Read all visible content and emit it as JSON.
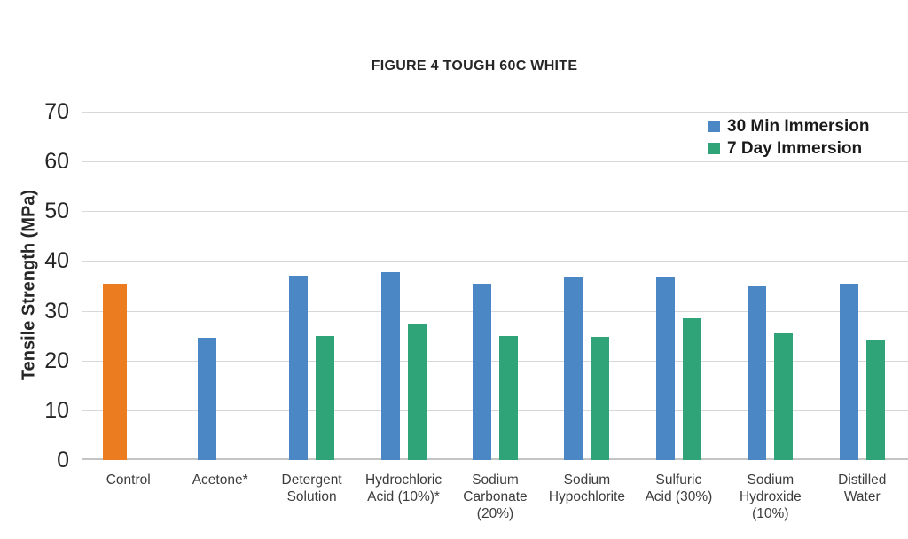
{
  "chart_data": {
    "type": "bar",
    "title": "FIGURE 4 TOUGH 60C WHITE",
    "ylabel": "Tensile Strength (MPa)",
    "xlabel": "",
    "ylim": [
      0,
      70
    ],
    "ytick_values": [
      0,
      10,
      20,
      30,
      40,
      50,
      60,
      70
    ],
    "grid": "horizontal",
    "legend_position": "top-right",
    "categories": [
      [
        "Control"
      ],
      [
        "Acetone*"
      ],
      [
        "Detergent",
        "Solution"
      ],
      [
        "Hydrochloric",
        "Acid (10%)*"
      ],
      [
        "Sodium",
        "Carbonate",
        "(20%)"
      ],
      [
        "Sodium",
        "Hypochlorite"
      ],
      [
        "Sulfuric",
        "Acid (30%)"
      ],
      [
        "Sodium",
        "Hydroxide",
        "(10%)"
      ],
      [
        "Distilled",
        "Water"
      ]
    ],
    "series": [
      {
        "name": "30 Min Immersion",
        "color": "#4B86C5",
        "values": [
          35.5,
          24.5,
          37.0,
          37.8,
          35.5,
          36.8,
          36.8,
          35.0,
          35.5
        ]
      },
      {
        "name": "7 Day Immersion",
        "color": "#2FA478",
        "values": [
          null,
          null,
          25.0,
          27.2,
          25.0,
          24.8,
          28.5,
          25.5,
          24.0
        ]
      }
    ],
    "bar_overrides": [
      {
        "series": 0,
        "category": 0,
        "color": "#EC7C20",
        "width": 27
      }
    ],
    "colors": {
      "accent_orange": "#EC7C20",
      "accent_blue": "#4B86C5",
      "accent_green": "#2FA478",
      "gridline": "#D8D8D8",
      "axis_line": "#C4C4C4",
      "text": "#262626"
    }
  }
}
